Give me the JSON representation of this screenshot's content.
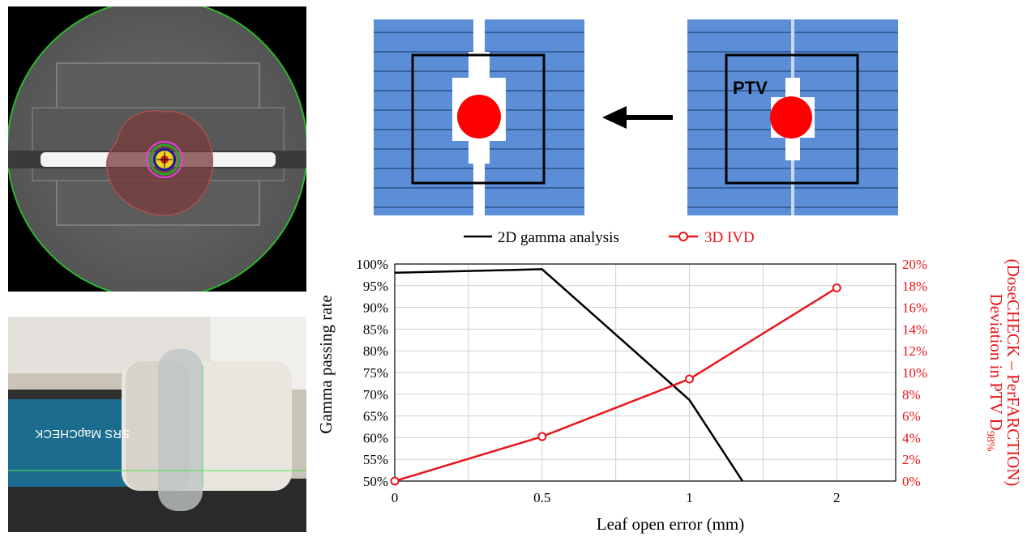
{
  "mlc_labels": {
    "ptv": "PTV"
  },
  "photo_labels": {
    "device_text": "SRS MapCHECK"
  },
  "colors": {
    "leaf_blue": "#5b8ed6",
    "target_red": "#ff0000",
    "series_2d": "#000000",
    "series_3d": "#e8161b"
  },
  "chart_data": {
    "type": "line",
    "x": [
      "0",
      "0.5",
      "1",
      "2"
    ],
    "xlabel": "Leaf open error (mm)",
    "ylabel_left": "Gamma passing rate",
    "ylabel_right_main": "Deviation in PTV D",
    "ylabel_right_sub": "98%",
    "ylabel_right_line2": "(DoseCHECK – PerFARCTION)",
    "y_left_lim": [
      50,
      100
    ],
    "y_left_ticks": [
      "50%",
      "55%",
      "60%",
      "65%",
      "70%",
      "75%",
      "80%",
      "85%",
      "90%",
      "95%",
      "100%"
    ],
    "y_right_lim": [
      0,
      20
    ],
    "y_right_ticks": [
      "0%",
      "2%",
      "4%",
      "6%",
      "8%",
      "10%",
      "12%",
      "14%",
      "16%",
      "18%",
      "20%"
    ],
    "grid": true,
    "legend_position": "top",
    "series": [
      {
        "name": "2D gamma analysis",
        "axis": "left",
        "color": "#000000",
        "marker": "none",
        "points": [
          [
            0,
            98.0
          ],
          [
            0.5,
            98.8
          ],
          [
            1,
            68.7
          ],
          [
            1.36,
            50.0
          ]
        ]
      },
      {
        "name": "3D IVD",
        "axis": "right",
        "color": "#e8161b",
        "marker": "circle",
        "points": [
          [
            0,
            0.0
          ],
          [
            0.5,
            4.1
          ],
          [
            1,
            9.4
          ],
          [
            2,
            17.8
          ]
        ]
      }
    ]
  }
}
